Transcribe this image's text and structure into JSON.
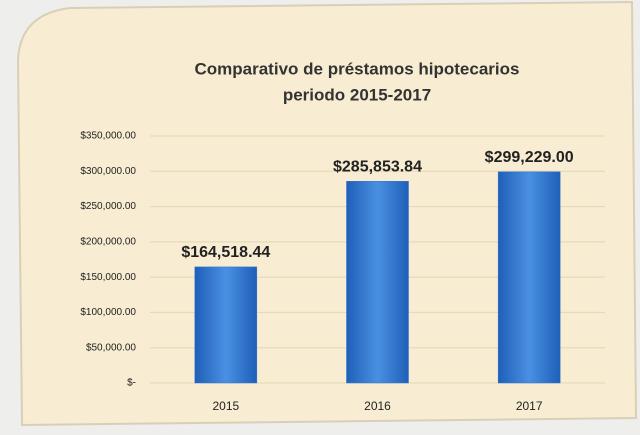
{
  "chart_data": {
    "type": "bar",
    "title": [
      "Comparativo de préstamos hipotecarios",
      "periodo 2015-2017"
    ],
    "categories": [
      "2015",
      "2016",
      "2017"
    ],
    "values": [
      164518.44,
      285853.84,
      299229.0
    ],
    "value_labels": [
      "$164,518.44",
      "$285,853.84",
      "$299,229.00"
    ],
    "color": "#2f76d2",
    "ylim": [
      0,
      350000
    ],
    "yticks": [
      {
        "value": 0,
        "label": "$-"
      },
      {
        "value": 50000,
        "label": "$50,000.00"
      },
      {
        "value": 100000,
        "label": "$100,000.00"
      },
      {
        "value": 150000,
        "label": "$150,000.00"
      },
      {
        "value": 200000,
        "label": "$200,000.00"
      },
      {
        "value": 250000,
        "label": "$250,000.00"
      },
      {
        "value": 300000,
        "label": "$300,000.00"
      },
      {
        "value": 350000,
        "label": "$350,000.00"
      }
    ],
    "grid": true
  }
}
